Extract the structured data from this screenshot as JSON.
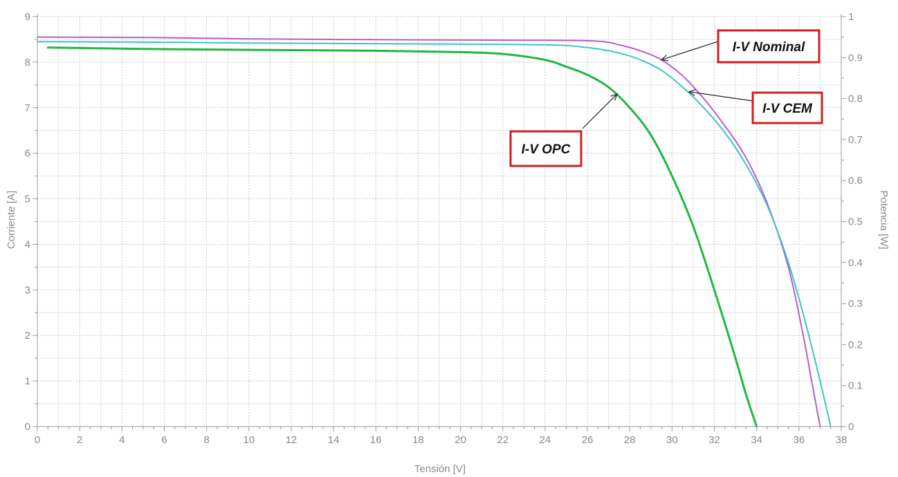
{
  "chart_data": {
    "type": "line",
    "xlabel": "Tensión [V]",
    "ylabel": "Corriente [A]",
    "y2label": "Potencia [W]",
    "xlim": [
      0,
      38
    ],
    "ylim": [
      0,
      9
    ],
    "y2lim": [
      0,
      1
    ],
    "xticks": [
      0,
      2,
      4,
      6,
      8,
      10,
      12,
      14,
      16,
      18,
      20,
      22,
      24,
      26,
      28,
      30,
      32,
      34,
      36,
      38
    ],
    "yticks": [
      0,
      1,
      2,
      3,
      4,
      5,
      6,
      7,
      8,
      9
    ],
    "y2ticks": [
      "0",
      "0.1",
      "0.2",
      "0.3",
      "0.4",
      "0.5",
      "0.6",
      "0.7",
      "0.8",
      "0.9",
      "1"
    ],
    "grid": true,
    "series": [
      {
        "name": "I-V Nominal",
        "color": "#b75bd0",
        "x": [
          0,
          5.5,
          10,
          18,
          24,
          26.5,
          27.5,
          28.5,
          29.5,
          30.5,
          31.5,
          32.5,
          33.5,
          34.5,
          35.5,
          36.2,
          36.6,
          37
        ],
        "y": [
          8.55,
          8.54,
          8.51,
          8.49,
          8.48,
          8.46,
          8.38,
          8.25,
          8.05,
          7.7,
          7.2,
          6.6,
          5.9,
          4.9,
          3.5,
          2.0,
          1.0,
          0
        ]
      },
      {
        "name": "I-V CEM",
        "color": "#3cc3c3",
        "x": [
          0,
          5,
          10,
          18,
          24,
          26,
          27.5,
          28.5,
          29.5,
          30.5,
          31.5,
          32.5,
          33.5,
          34.5,
          35.5,
          36.3,
          37,
          37.5
        ],
        "y": [
          8.45,
          8.44,
          8.42,
          8.4,
          8.38,
          8.32,
          8.2,
          8.05,
          7.82,
          7.45,
          7.0,
          6.45,
          5.75,
          4.85,
          3.6,
          2.3,
          1.0,
          0
        ]
      },
      {
        "name": "I-V OPC",
        "color": "#1fb83d",
        "x": [
          0.5,
          5,
          10,
          16,
          20,
          22,
          24,
          25,
          26,
          27,
          28,
          29,
          30,
          31,
          32,
          33,
          33.5,
          34
        ],
        "y": [
          8.32,
          8.29,
          8.27,
          8.25,
          8.22,
          8.18,
          8.05,
          7.9,
          7.72,
          7.45,
          7.0,
          6.4,
          5.5,
          4.4,
          3.0,
          1.5,
          0.7,
          0
        ]
      }
    ],
    "annotations": [
      {
        "text": "I-V Nominal",
        "target_x": 29.5,
        "target_y": 8.05
      },
      {
        "text": "I-V CEM",
        "target_x": 30.8,
        "target_y": 7.35
      },
      {
        "text": "I-V OPC",
        "target_x": 27.4,
        "target_y": 7.3
      }
    ]
  }
}
